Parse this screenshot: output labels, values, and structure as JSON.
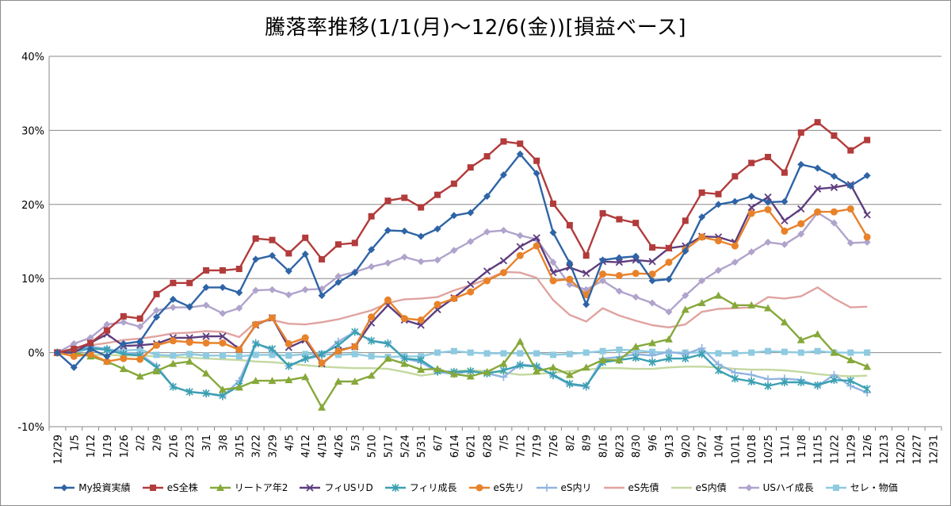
{
  "chart_data": {
    "type": "line",
    "title": "騰落率推移(1/1(月)～12/6(金))[損益ベース]",
    "xlabel": "",
    "ylabel": "",
    "ylim": [
      -10,
      40
    ],
    "yticks": [
      -10,
      0,
      10,
      20,
      30,
      40
    ],
    "ytick_labels": [
      "-10%",
      "0%",
      "10%",
      "20%",
      "30%",
      "40%"
    ],
    "grid": "horizontal",
    "legend": "bottom",
    "x_tick_labels": [
      "12/29",
      "1/5",
      "1/12",
      "1/19",
      "1/26",
      "2/2",
      "2/9",
      "2/16",
      "2/23",
      "3/1",
      "3/8",
      "3/15",
      "3/22",
      "3/29",
      "4/5",
      "4/12",
      "4/19",
      "4/26",
      "5/3",
      "5/10",
      "5/17",
      "5/24",
      "5/31",
      "6/7",
      "6/14",
      "6/21",
      "6/28",
      "7/5",
      "7/12",
      "7/19",
      "7/26",
      "8/2",
      "8/9",
      "8/16",
      "8/23",
      "8/30",
      "9/6",
      "9/13",
      "9/20",
      "9/27",
      "10/4",
      "10/11",
      "10/18",
      "10/25",
      "11/1",
      "11/8",
      "11/15",
      "11/22",
      "11/29",
      "12/6",
      "12/13",
      "12/20",
      "12/27",
      "12/31"
    ],
    "series": [
      {
        "name": "My投資実績",
        "color": "#2e64a6",
        "marker": "diamond",
        "values": [
          0,
          -2,
          0.5,
          -0.5,
          1.2,
          1.5,
          4.8,
          7.2,
          6.2,
          8.8,
          8.8,
          8.1,
          12.6,
          13.1,
          11,
          13.3,
          7.7,
          9.5,
          10.8,
          13.9,
          16.5,
          16.4,
          15.7,
          16.7,
          18.5,
          18.9,
          21.1,
          24,
          26.8,
          24.2,
          16.2,
          12.1,
          6.5,
          12.5,
          12.8,
          13,
          9.7,
          9.9,
          13.7,
          18.3,
          20,
          20.4,
          21.1,
          20.3,
          20.4,
          25.4,
          24.9,
          23.8,
          22.5,
          23.9
        ]
      },
      {
        "name": "eS全株",
        "color": "#b23b3b",
        "marker": "square",
        "values": [
          0,
          0.5,
          1.3,
          3,
          4.9,
          4.6,
          7.9,
          9.4,
          9.4,
          11.1,
          11.1,
          11.3,
          15.4,
          15.2,
          13.4,
          15.5,
          12.6,
          14.6,
          14.8,
          18.4,
          20.5,
          20.9,
          19.6,
          21.3,
          22.8,
          25,
          26.5,
          28.5,
          28.2,
          25.9,
          20.1,
          17.2,
          13.1,
          18.8,
          18,
          17.5,
          14.2,
          14.1,
          17.8,
          21.6,
          21.4,
          23.8,
          25.6,
          26.4,
          24.3,
          29.7,
          31.1,
          29.3,
          27.3,
          28.7
        ]
      },
      {
        "name": "リートア年2",
        "color": "#86a83a",
        "marker": "triangle",
        "values": [
          0,
          0,
          -0.5,
          -1.2,
          -2.2,
          -3.2,
          -2.5,
          -1.5,
          -1.2,
          -2.8,
          -5,
          -4.7,
          -3.8,
          -3.8,
          -3.7,
          -3.3,
          -7.4,
          -3.9,
          -3.9,
          -3.1,
          -0.8,
          -1.5,
          -2.3,
          -2.2,
          -2.9,
          -3.2,
          -2.6,
          -1.5,
          1.5,
          -2.5,
          -2,
          -3,
          -2,
          -1,
          -1,
          0.8,
          1.3,
          1.8,
          5.8,
          6.7,
          7.7,
          6.4,
          6.4,
          6,
          4.1,
          1.7,
          2.5,
          0,
          -1,
          -1.9
        ]
      },
      {
        "name": "フィUSリD",
        "color": "#5e3d7e",
        "marker": "x",
        "values": [
          0,
          0,
          1.3,
          2.5,
          0.9,
          1,
          1.2,
          2,
          2,
          2.2,
          2.2,
          0.5,
          3.7,
          4.7,
          0.7,
          1.7,
          -1.5,
          0.3,
          0.8,
          4,
          6.4,
          4.4,
          3.7,
          5.8,
          7.4,
          9.2,
          11,
          12.4,
          14.3,
          15.5,
          10.8,
          11.5,
          10.7,
          12.3,
          12.2,
          12.5,
          12.3,
          14.1,
          14.4,
          15.7,
          15.6,
          14.9,
          19.6,
          21,
          17.8,
          19.4,
          22.1,
          22.3,
          22.7,
          18.6
        ]
      },
      {
        "name": "フィリ成長",
        "color": "#3aa0b2",
        "marker": "asterisk",
        "values": [
          0,
          0.2,
          0.6,
          0.4,
          -0.2,
          -0.4,
          -2,
          -4.6,
          -5.3,
          -5.5,
          -5.8,
          -4.5,
          1.2,
          0.5,
          -1.8,
          -0.8,
          -0.2,
          1,
          2.8,
          1.6,
          1.2,
          -0.8,
          -1,
          -2.5,
          -2.6,
          -2.5,
          -2.8,
          -2.4,
          -1.7,
          -1.9,
          -3,
          -4.2,
          -4.5,
          -1.3,
          -1,
          -0.7,
          -1.3,
          -0.8,
          -0.8,
          -0.2,
          -2.4,
          -3.5,
          -3.9,
          -4.5,
          -4,
          -4,
          -4.4,
          -3.7,
          -3.8,
          -4.9
        ]
      },
      {
        "name": "eS先リ",
        "color": "#e8822a",
        "marker": "circle",
        "values": [
          0,
          -0.5,
          -0.2,
          -1.2,
          -0.8,
          -0.9,
          1,
          1.6,
          1.4,
          1.3,
          1.3,
          0.4,
          3.8,
          4.7,
          1.2,
          2,
          -1.4,
          0.2,
          0.8,
          4.8,
          7.1,
          4.6,
          4.4,
          6.5,
          7.3,
          8.2,
          9.7,
          10.8,
          13.1,
          14.4,
          9.7,
          9.9,
          7.8,
          10.6,
          10.4,
          10.7,
          10.6,
          12.2,
          13.9,
          15.6,
          15.1,
          14.4,
          18.8,
          19.3,
          16.4,
          17.4,
          19,
          19,
          19.4,
          15.6
        ]
      },
      {
        "name": "eS内リ",
        "color": "#8fb4e0",
        "marker": "plus",
        "values": [
          0,
          0.3,
          0.8,
          0.5,
          0,
          -0.2,
          -1.8,
          -4.6,
          -5.3,
          -5.5,
          -5.9,
          -3.8,
          1.3,
          0.3,
          -1.8,
          -0.9,
          -0.4,
          1.5,
          2.8,
          1.6,
          1.3,
          -0.8,
          -1.3,
          -2.6,
          -2.9,
          -2.5,
          -2.8,
          -3.3,
          -1.6,
          -1.8,
          -3.1,
          -4.3,
          -4.6,
          -0.8,
          -0.6,
          -0.2,
          -0.4,
          0.1,
          -0.2,
          0.6,
          -1.6,
          -2.7,
          -3,
          -3.6,
          -3.5,
          -3.7,
          -4.5,
          -3,
          -4.5,
          -5.4
        ]
      },
      {
        "name": "eS先債",
        "color": "#e0a3a0",
        "marker": "none",
        "values": [
          0,
          0.6,
          1,
          1.3,
          1.7,
          1.9,
          2.2,
          2.6,
          2.7,
          2.9,
          2.8,
          2.1,
          4.1,
          4.4,
          3.9,
          3.8,
          4.1,
          4.5,
          5.1,
          5.7,
          6.7,
          7.2,
          7.3,
          7.5,
          8.4,
          9.1,
          9.9,
          10.9,
          10.8,
          10.1,
          7.1,
          5.1,
          4.2,
          6,
          5,
          4.3,
          3.7,
          3.4,
          3.8,
          5.5,
          5.9,
          6,
          6.1,
          7.5,
          7.3,
          7.6,
          8.8,
          7.3,
          6.1,
          6.2
        ]
      },
      {
        "name": "eS内債",
        "color": "#c4d8a0",
        "marker": "none",
        "values": [
          0,
          -0.2,
          -0.3,
          -0.3,
          -0.4,
          -0.4,
          -0.5,
          -0.6,
          -0.7,
          -0.8,
          -0.9,
          -1,
          -1.2,
          -1.3,
          -1.5,
          -1.7,
          -1.9,
          -2,
          -2.1,
          -2.1,
          -2.2,
          -2.6,
          -3.1,
          -2.8,
          -2.5,
          -2.4,
          -2.5,
          -2.7,
          -3,
          -2.9,
          -2.7,
          -2.5,
          -2.3,
          -2.1,
          -2.1,
          -2.2,
          -2.2,
          -2,
          -1.9,
          -1.9,
          -2,
          -2.2,
          -2.3,
          -2.3,
          -2.4,
          -2.6,
          -2.9,
          -3.1,
          -3.2,
          -3.1
        ]
      },
      {
        "name": "USハイ成長",
        "color": "#b0a3cc",
        "marker": "diamond",
        "values": [
          0,
          1.2,
          2,
          3.8,
          4.1,
          3.5,
          5.7,
          6.1,
          6.1,
          6.4,
          5.3,
          6,
          8.4,
          8.5,
          7.8,
          8.5,
          8.6,
          10.3,
          10.9,
          11.6,
          12.1,
          12.9,
          12.3,
          12.5,
          13.8,
          15,
          16.3,
          16.5,
          15.8,
          15.3,
          12.2,
          9.2,
          8.5,
          9.7,
          8.3,
          7.5,
          6.7,
          5.5,
          7.7,
          9.7,
          11.1,
          12.2,
          13.6,
          14.9,
          14.6,
          16,
          18.9,
          17.5,
          14.8,
          14.9
        ]
      },
      {
        "name": "セレ・物価",
        "color": "#8ecae0",
        "marker": "square",
        "values": [
          0,
          0,
          0.5,
          0.4,
          0.3,
          0.4,
          -0.3,
          -0.4,
          -0.2,
          -0.4,
          -0.4,
          -0.5,
          -0.3,
          -0.3,
          -0.4,
          -0.2,
          -0.2,
          -0.3,
          -0.2,
          -0.5,
          -0.6,
          -0.5,
          -0.5,
          0,
          0.2,
          0,
          -0.1,
          -0.1,
          -0.1,
          -0.1,
          -0.3,
          -0.2,
          0,
          0.2,
          0.4,
          0.3,
          0.1,
          0,
          0,
          0,
          -0.1,
          -0.1,
          0,
          0.2,
          0.1,
          0,
          0.2,
          0,
          0,
          0
        ]
      }
    ]
  }
}
